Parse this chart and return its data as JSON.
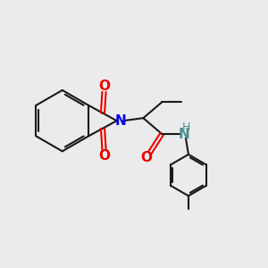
{
  "bg_color": "#ebebeb",
  "bond_color": "#1a1a1a",
  "N_color": "#0000ee",
  "O_color": "#ee0000",
  "NH_color": "#4a9090",
  "H_color": "#4a9090",
  "figsize": [
    3.0,
    3.0
  ],
  "dpi": 100,
  "xlim": [
    0,
    10
  ],
  "ylim": [
    0,
    10
  ]
}
